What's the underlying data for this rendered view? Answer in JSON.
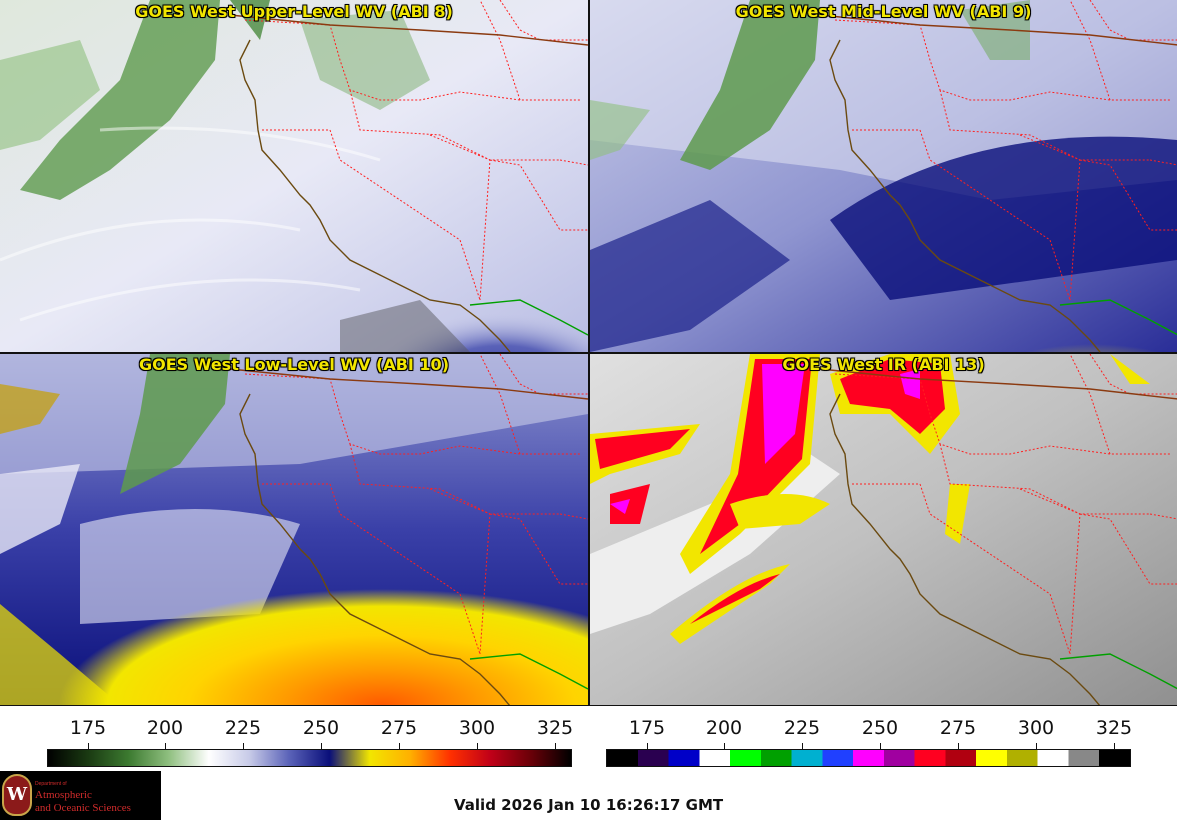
{
  "panels": [
    {
      "id": "p1",
      "title": "GOES West Upper-Level WV (ABI 8)",
      "product": "upper-wv"
    },
    {
      "id": "p2",
      "title": "GOES West Mid-Level WV (ABI 9)",
      "product": "mid-wv"
    },
    {
      "id": "p3",
      "title": "GOES West Low-Level WV (ABI 10)",
      "product": "low-wv"
    },
    {
      "id": "p4",
      "title": "GOES West IR (ABI 13)",
      "product": "ir"
    }
  ],
  "colorbars": [
    {
      "name": "water-vapor",
      "ticks": [
        "175",
        "200",
        "225",
        "250",
        "275",
        "300",
        "325"
      ],
      "colors": [
        "#000000",
        "#1a3a12",
        "#3c7a30",
        "#8fbf7f",
        "#ffffff",
        "#c8cbe8",
        "#5a62b8",
        "#0a0f7a",
        "#f2e600",
        "#ffb000",
        "#ff3000",
        "#c00018",
        "#6a0008",
        "#000000"
      ]
    },
    {
      "name": "infrared",
      "ticks": [
        "175",
        "200",
        "225",
        "250",
        "275",
        "300",
        "325"
      ],
      "colors": [
        "#000000",
        "#2a0050",
        "#0000c8",
        "#ffffff",
        "#00ff00",
        "#00a000",
        "#00b0d0",
        "#2040ff",
        "#ff00ff",
        "#a000a0",
        "#ff0020",
        "#b00010",
        "#ffff00",
        "#b0b000",
        "#ffffff",
        "#888888",
        "#000000"
      ]
    }
  ],
  "logo": {
    "dept": "Department of",
    "line1": "Atmospheric",
    "line2": "and Oceanic Sciences",
    "seal_letter": "W"
  },
  "valid_time": "Valid 2026 Jan 10 16:26:17 GMT",
  "map_colors": {
    "coastline": "#6b4a10",
    "state_borders": "#ff2020",
    "country_border": "#8b3a10",
    "mexico_border": "#00a000"
  }
}
